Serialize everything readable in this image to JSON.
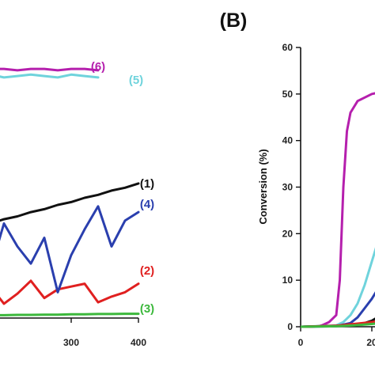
{
  "chart_data": [
    {
      "panel": "",
      "type": "line",
      "xlabel": "",
      "ylabel": "",
      "xlim": [
        0,
        400
      ],
      "ylim": [
        0,
        10
      ],
      "x_ticks": [
        300,
        400
      ],
      "grid": false,
      "series": [
        {
          "name": "(1)",
          "color": "#111111",
          "x": [
            0,
            20,
            40,
            60,
            80,
            100,
            120,
            140,
            160,
            180,
            200,
            220,
            240,
            260,
            280,
            300,
            320,
            340,
            360,
            380,
            400
          ],
          "y": [
            2.15,
            2.3,
            2.45,
            2.55,
            2.7,
            2.8,
            2.95,
            3.05,
            3.2,
            3.3,
            3.45,
            3.55,
            3.7,
            3.8,
            3.95,
            4.05,
            4.2,
            4.3,
            4.45,
            4.55,
            4.7
          ]
        },
        {
          "name": "(2)",
          "color": "#e02020",
          "x": [
            0,
            20,
            40,
            60,
            80,
            100,
            120,
            140,
            160,
            180,
            200,
            220,
            240,
            260,
            280,
            300,
            320,
            340,
            360,
            380,
            400
          ],
          "y": [
            0.6,
            0.45,
            0.9,
            0.5,
            0.6,
            0.8,
            0.55,
            1.0,
            0.6,
            1.1,
            0.5,
            0.85,
            1.3,
            0.7,
            1.0,
            1.1,
            1.2,
            0.55,
            0.75,
            0.9,
            1.2
          ]
        },
        {
          "name": "(3)",
          "color": "#3cb83c",
          "x": [
            0,
            20,
            40,
            60,
            80,
            100,
            120,
            140,
            160,
            180,
            200,
            220,
            240,
            260,
            280,
            300,
            320,
            340,
            360,
            380,
            400
          ],
          "y": [
            0.05,
            0.06,
            0.06,
            0.07,
            0.07,
            0.08,
            0.08,
            0.09,
            0.09,
            0.1,
            0.1,
            0.11,
            0.11,
            0.12,
            0.12,
            0.13,
            0.13,
            0.14,
            0.14,
            0.15,
            0.15
          ]
        },
        {
          "name": "(4)",
          "color": "#2a3fae",
          "x": [
            0,
            20,
            40,
            60,
            80,
            100,
            120,
            140,
            160,
            180,
            200,
            220,
            240,
            260,
            280,
            300,
            320,
            340,
            360,
            380,
            400
          ],
          "y": [
            1.3,
            1.9,
            2.5,
            2.0,
            2.8,
            1.5,
            3.2,
            2.4,
            2.9,
            1.7,
            3.3,
            2.5,
            1.9,
            2.8,
            0.9,
            2.2,
            3.1,
            3.9,
            2.5,
            3.4,
            3.7
          ]
        },
        {
          "name": "(5)",
          "color": "#6fd3dc",
          "x": [
            0,
            20,
            40,
            60,
            80,
            100,
            120,
            140,
            160,
            180,
            200,
            220,
            240,
            260,
            280,
            300,
            320,
            340,
            360,
            380,
            400
          ],
          "y": [
            8.4,
            8.45,
            8.35,
            8.5,
            8.4,
            8.45,
            8.5,
            8.4,
            8.45,
            8.5,
            8.4,
            8.45,
            8.5,
            8.45,
            8.4,
            8.5,
            8.45,
            8.4,
            8.5,
            8.45,
            8.45
          ]
        },
        {
          "name": "(6)",
          "color": "#b51fad",
          "x": [
            0,
            20,
            40,
            60,
            80,
            100,
            120,
            140,
            160,
            180,
            200,
            220,
            240,
            260,
            280,
            300,
            320,
            340,
            360,
            380,
            400
          ],
          "y": [
            8.65,
            8.7,
            8.65,
            8.7,
            8.7,
            8.65,
            8.7,
            8.7,
            8.65,
            8.7,
            8.7,
            8.65,
            8.7,
            8.7,
            8.65,
            8.7,
            8.7,
            8.65,
            8.7,
            8.7,
            8.7
          ]
        }
      ]
    },
    {
      "panel": "(B)",
      "type": "line",
      "xlabel": "",
      "ylabel": "Conversion (%)",
      "xlim": [
        0,
        40
      ],
      "ylim": [
        0,
        60
      ],
      "x_ticks": [
        0,
        20
      ],
      "y_ticks": [
        0,
        10,
        20,
        30,
        40,
        50,
        60
      ],
      "grid": false,
      "series": [
        {
          "color": "#b51fad",
          "x": [
            0,
            5,
            6,
            8,
            10,
            11,
            12,
            13,
            14,
            16,
            20,
            25,
            30,
            35,
            40
          ],
          "y": [
            0,
            0.1,
            0.3,
            1.0,
            2.5,
            10,
            30,
            42,
            46,
            48.5,
            50,
            50.8,
            51.2,
            51.5,
            51.7
          ]
        },
        {
          "color": "#6fd3dc",
          "x": [
            0,
            10,
            12,
            14,
            16,
            18,
            20,
            22,
            24,
            26,
            28,
            30,
            32,
            35,
            40
          ],
          "y": [
            0,
            0.3,
            1.0,
            2.5,
            5,
            9,
            14,
            19,
            24,
            29,
            33,
            37,
            39.5,
            41.5,
            42
          ]
        },
        {
          "color": "#2a3fae",
          "x": [
            0,
            10,
            14,
            16,
            18,
            20,
            22,
            24,
            26,
            28,
            30,
            32,
            35,
            40
          ],
          "y": [
            0,
            0.1,
            0.8,
            2,
            4,
            6,
            8.5,
            11,
            14,
            17,
            20,
            22.5,
            24.5,
            26
          ]
        },
        {
          "color": "#111111",
          "x": [
            0,
            15,
            18,
            20,
            22,
            24,
            26,
            28,
            30,
            32,
            35,
            40
          ],
          "y": [
            0,
            0.3,
            0.8,
            1.3,
            2.2,
            3.5,
            5.5,
            8,
            11,
            14,
            17,
            19
          ]
        },
        {
          "color": "#e02020",
          "x": [
            0,
            10,
            15,
            20,
            25,
            30,
            35,
            40
          ],
          "y": [
            0,
            0.2,
            0.6,
            1.0,
            1.5,
            2.0,
            2.4,
            2.8
          ]
        },
        {
          "color": "#3cb83c",
          "x": [
            0,
            10,
            15,
            20,
            25,
            30,
            35,
            40
          ],
          "y": [
            0,
            0.1,
            0.3,
            0.6,
            1.0,
            1.5,
            2.0,
            2.5
          ]
        }
      ]
    }
  ]
}
